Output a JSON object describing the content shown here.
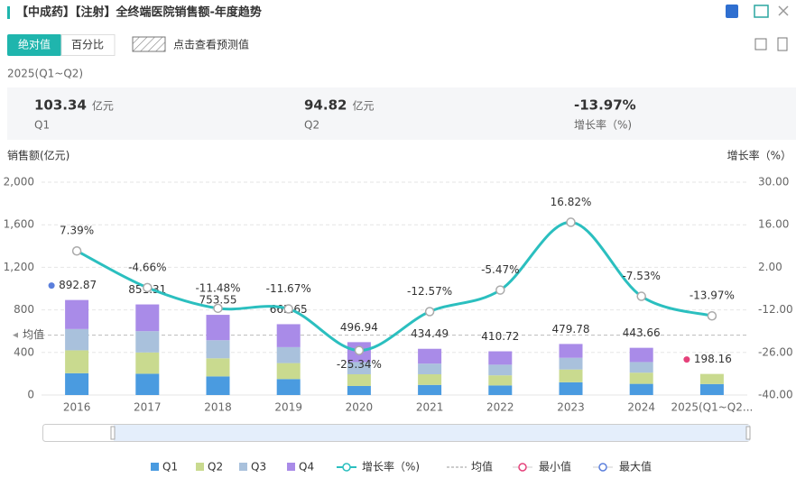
{
  "header": {
    "title": "【中成药】【注射】全终端医院销售额-年度趋势",
    "tabs": [
      "绝对值",
      "百分比"
    ],
    "forecast": "点击查看预测值"
  },
  "period": "2025(Q1~Q2)",
  "kpis": [
    {
      "value": "103.34",
      "unit": "亿元",
      "label": "Q1"
    },
    {
      "value": "94.82",
      "unit": "亿元",
      "label": "Q2"
    },
    {
      "value": "-13.97%",
      "label": "增长率（%)"
    }
  ],
  "chart_data": {
    "type": "bar",
    "y_label": "销售额(亿元)",
    "y2_label": "增长率（%）",
    "categories": [
      "2016",
      "2017",
      "2018",
      "2019",
      "2020",
      "2021",
      "2022",
      "2023",
      "2024",
      "2025(Q1~Q2..."
    ],
    "series": [
      {
        "name": "Q1",
        "type": "bar",
        "color": "#4a9be0",
        "values": [
          205,
          200,
          175,
          150,
          85,
          95,
          90,
          120,
          105,
          103.34
        ]
      },
      {
        "name": "Q2",
        "type": "bar",
        "color": "#c9da8f",
        "values": [
          215,
          200,
          170,
          150,
          110,
          100,
          95,
          120,
          105,
          94.82
        ]
      },
      {
        "name": "Q3",
        "type": "bar",
        "color": "#a9c1dc",
        "values": [
          200,
          200,
          170,
          150,
          115,
          100,
          100,
          110,
          100,
          null
        ]
      },
      {
        "name": "Q4",
        "type": "bar",
        "color": "#a98be8",
        "values": [
          272.87,
          251.31,
          238.55,
          215.65,
          186.94,
          139.49,
          125.72,
          129.78,
          133.66,
          null
        ]
      },
      {
        "name": "增长率（%)",
        "type": "line",
        "axis": "y2",
        "color": "#2bbfbf",
        "values": [
          7.39,
          -4.66,
          -11.48,
          -11.67,
          -25.34,
          -12.57,
          -5.47,
          16.82,
          -7.53,
          -13.97
        ],
        "value_labels": [
          "7.39%",
          "-4.66%",
          "-11.48%",
          "-11.67%",
          "-25.34%",
          "-12.57%",
          "-5.47%",
          "16.82%",
          "-7.53%",
          "-13.97%"
        ]
      }
    ],
    "totals": [
      892.87,
      851.31,
      753.55,
      665.65,
      496.94,
      434.49,
      410.72,
      479.78,
      443.66,
      198.16
    ],
    "mean": {
      "name": "均值",
      "value": 563
    },
    "min_label": "最小值",
    "max_label": "最大值",
    "ylim": [
      0,
      2000
    ],
    "yticks": [
      0,
      400,
      800,
      {
        "value": 1200,
        "label": "1,200"
      },
      {
        "value": 1600,
        "label": "1,600"
      },
      {
        "value": 2000,
        "label": "2,000"
      }
    ],
    "y2lim": [
      -40,
      30
    ],
    "y2ticks": [
      {
        "value": -40,
        "label": "-40.00"
      },
      {
        "value": -26,
        "label": "-26.00"
      },
      {
        "value": -12,
        "label": "-12.00"
      },
      {
        "value": 2,
        "label": "2.00"
      },
      {
        "value": 16,
        "label": "16.00"
      },
      {
        "value": 30,
        "label": "30.00"
      }
    ],
    "grid": true
  }
}
